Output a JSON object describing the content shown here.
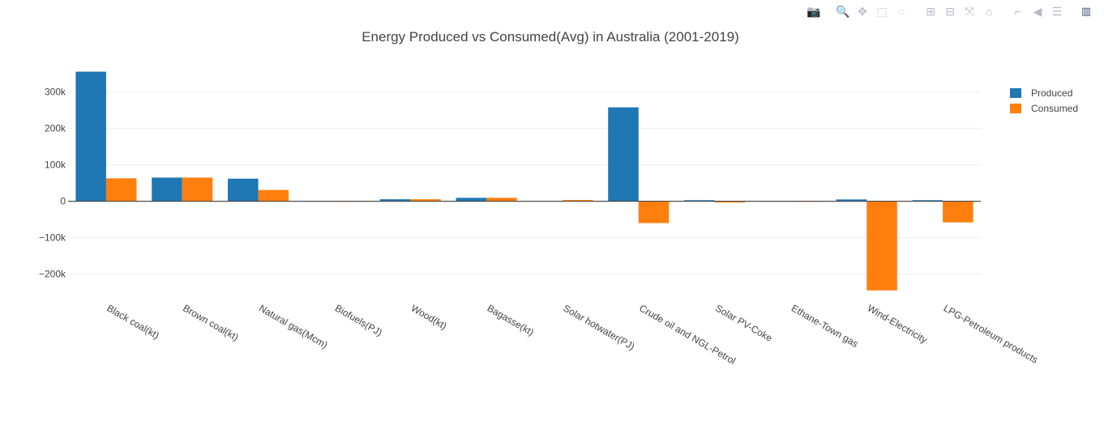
{
  "modebar": {
    "buttons": [
      {
        "name": "camera-icon",
        "glyph": "📷",
        "group": 0
      },
      {
        "name": "zoom-icon",
        "glyph": "🔍",
        "group": 1,
        "active": true
      },
      {
        "name": "pan-icon",
        "glyph": "✥",
        "group": 1
      },
      {
        "name": "box-select-icon",
        "glyph": "⬚",
        "group": 1
      },
      {
        "name": "lasso-select-icon",
        "glyph": "◌",
        "group": 1
      },
      {
        "name": "zoom-in-icon",
        "glyph": "⊞",
        "group": 2
      },
      {
        "name": "zoom-out-icon",
        "glyph": "⊟",
        "group": 2
      },
      {
        "name": "autoscale-icon",
        "glyph": "⤧",
        "group": 2
      },
      {
        "name": "reset-axes-icon",
        "glyph": "⌂",
        "group": 2
      },
      {
        "name": "spike-lines-icon",
        "glyph": "⌐",
        "group": 3
      },
      {
        "name": "hover-closest-icon",
        "glyph": "◀",
        "group": 3
      },
      {
        "name": "hover-compare-icon",
        "glyph": "☰",
        "group": 3
      },
      {
        "name": "plotly-logo-icon",
        "glyph": "▥",
        "group": 4
      }
    ]
  },
  "chart_data": {
    "type": "bar",
    "title": "Energy Produced vs Consumed(Avg) in Australia (2001-2019)",
    "categories": [
      "Black coal(kt)",
      "Brown coal(kt)",
      "Natural gas(Mcm)",
      "Biofuels(PJ)",
      "Wood(kt)",
      "Bagasse(kt)",
      "Solar hotwater(PJ)",
      "Crude oil and NGL-Petrol",
      "Solar PV-Coke",
      "Ethane-Town gas",
      "Wind-Electricity",
      "LPG-Petroleum products"
    ],
    "series": [
      {
        "name": "Produced",
        "color": "#1f77b4",
        "values": [
          356000,
          65000,
          62000,
          400,
          5500,
          9500,
          600,
          258000,
          3000,
          400,
          5000,
          3000
        ]
      },
      {
        "name": "Consumed",
        "color": "#ff7f0e",
        "values": [
          63000,
          65000,
          31000,
          -1200,
          5500,
          9500,
          3500,
          -60000,
          -3500,
          -1200,
          -245000,
          -58000
        ]
      }
    ],
    "ylim": [
      -270000,
      375000
    ],
    "yticks": [
      -200000,
      -100000,
      0,
      100000,
      200000,
      300000
    ],
    "ytick_labels": [
      "−200k",
      "−100k",
      "0",
      "100k",
      "200k",
      "300k"
    ],
    "grid": true,
    "legend_position": "top-right",
    "xlabel": "",
    "ylabel": ""
  }
}
